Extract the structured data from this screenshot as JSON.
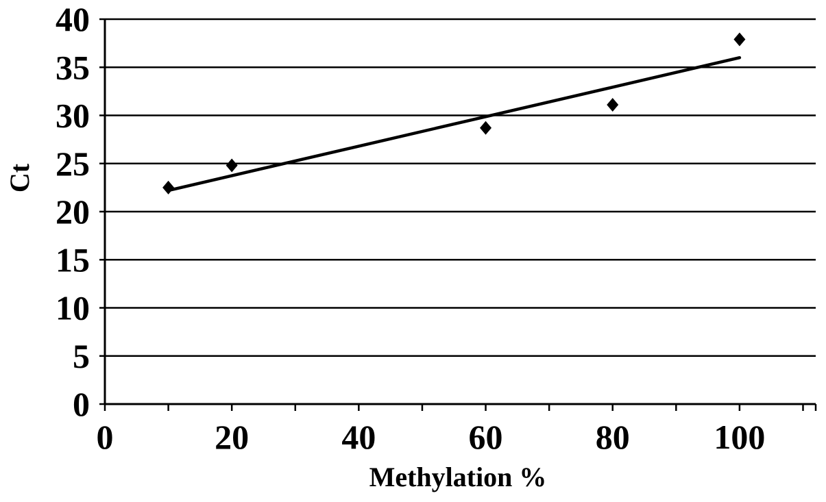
{
  "chart_data": {
    "type": "scatter",
    "title": "",
    "xlabel": "Methylation %",
    "ylabel": "Ct",
    "xlim": [
      0,
      112
    ],
    "ylim": [
      0,
      40
    ],
    "xticks": [
      0,
      20,
      40,
      60,
      80,
      100
    ],
    "yticks": [
      0,
      5,
      10,
      15,
      20,
      25,
      30,
      35,
      40
    ],
    "xtick_labels": [
      "0",
      "20",
      "40",
      "60",
      "80",
      "100"
    ],
    "ytick_labels": [
      "0",
      "5",
      "10",
      "15",
      "20",
      "25",
      "30",
      "35",
      "40"
    ],
    "grid": "horizontal",
    "legend": "none",
    "series": [
      {
        "marker": "diamond",
        "color": "#000000",
        "points": [
          {
            "x": 10,
            "y": 22.5
          },
          {
            "x": 20,
            "y": 24.8
          },
          {
            "x": 60,
            "y": 28.7
          },
          {
            "x": 80,
            "y": 31.1
          },
          {
            "x": 100,
            "y": 37.9
          }
        ]
      }
    ],
    "trendline": {
      "type": "linear",
      "color": "#000000",
      "from": {
        "x": 10,
        "y": 22.2
      },
      "to": {
        "x": 100,
        "y": 36.0
      }
    }
  }
}
